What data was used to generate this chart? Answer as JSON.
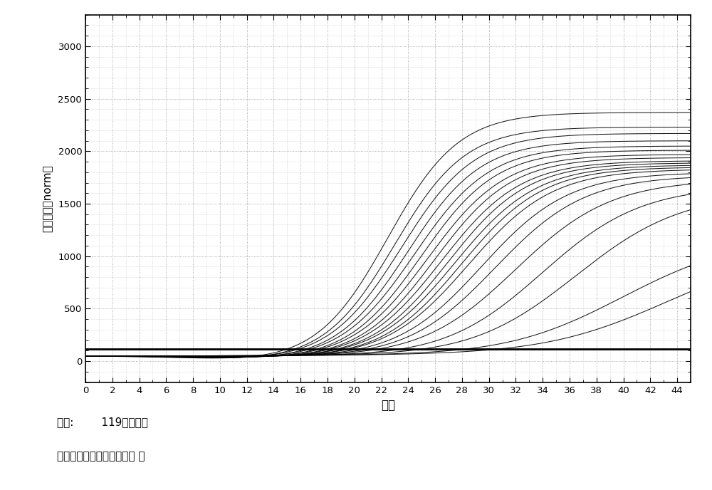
{
  "xlabel": "循环",
  "ylabel": "荧光强度（norm）",
  "xlim": [
    0,
    45
  ],
  "ylim": [
    -200,
    3300
  ],
  "yticks": [
    0,
    500,
    1000,
    1500,
    2000,
    2500,
    3000
  ],
  "xticks": [
    0,
    2,
    4,
    6,
    8,
    10,
    12,
    14,
    16,
    18,
    20,
    22,
    24,
    26,
    28,
    30,
    32,
    34,
    36,
    38,
    40,
    42,
    44
  ],
  "threshold_y": 119,
  "background_color": "#ffffff",
  "line_color": "#000000",
  "annotation_line1": "阈値:        119（噪带）",
  "annotation_line2": "基线设定：自动，漂移校正 关",
  "curve_params": [
    {
      "ct": 22.5,
      "plateau": 2320,
      "k": 0.38,
      "dip": -60
    },
    {
      "ct": 23.0,
      "plateau": 2180,
      "k": 0.38,
      "dip": -55
    },
    {
      "ct": 23.5,
      "plateau": 2120,
      "k": 0.37,
      "dip": -52
    },
    {
      "ct": 24.0,
      "plateau": 2050,
      "k": 0.37,
      "dip": -50
    },
    {
      "ct": 24.5,
      "plateau": 2000,
      "k": 0.36,
      "dip": -48
    },
    {
      "ct": 25.0,
      "plateau": 1960,
      "k": 0.36,
      "dip": -46
    },
    {
      "ct": 25.5,
      "plateau": 1920,
      "k": 0.35,
      "dip": -44
    },
    {
      "ct": 26.0,
      "plateau": 1890,
      "k": 0.35,
      "dip": -42
    },
    {
      "ct": 26.5,
      "plateau": 1860,
      "k": 0.34,
      "dip": -40
    },
    {
      "ct": 27.0,
      "plateau": 1840,
      "k": 0.34,
      "dip": -38
    },
    {
      "ct": 27.5,
      "plateau": 1820,
      "k": 0.33,
      "dip": -36
    },
    {
      "ct": 28.0,
      "plateau": 1800,
      "k": 0.33,
      "dip": -35
    },
    {
      "ct": 28.5,
      "plateau": 1780,
      "k": 0.32,
      "dip": -34
    },
    {
      "ct": 29.5,
      "plateau": 1750,
      "k": 0.31,
      "dip": -32
    },
    {
      "ct": 30.5,
      "plateau": 1720,
      "k": 0.3,
      "dip": -30
    },
    {
      "ct": 32.0,
      "plateau": 1680,
      "k": 0.28,
      "dip": -28
    },
    {
      "ct": 34.0,
      "plateau": 1620,
      "k": 0.27,
      "dip": -26
    },
    {
      "ct": 36.5,
      "plateau": 1560,
      "k": 0.25,
      "dip": -24
    },
    {
      "ct": 40.0,
      "plateau": 1150,
      "k": 0.22,
      "dip": -20
    },
    {
      "ct": 43.5,
      "plateau": 1080,
      "k": 0.2,
      "dip": -18
    }
  ]
}
